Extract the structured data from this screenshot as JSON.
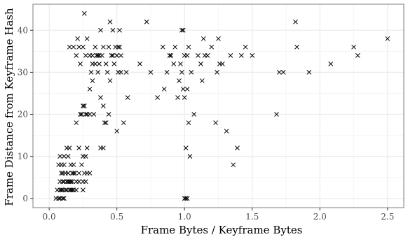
{
  "chart_data": {
    "type": "scatter",
    "title": "",
    "xlabel": "Frame Bytes / Keyframe Bytes",
    "ylabel": "Frame Distance from Keyframe Hash",
    "xlim": [
      -0.12,
      2.62
    ],
    "ylim": [
      -2.2,
      46.2
    ],
    "xticks": [
      0.0,
      0.5,
      1.0,
      1.5,
      2.0,
      2.5
    ],
    "xtick_labels": [
      "0.0",
      "0.5",
      "1.0",
      "1.5",
      "2.0",
      "2.5"
    ],
    "yticks": [
      0,
      10,
      20,
      30,
      40
    ],
    "ytick_labels": [
      "0",
      "10",
      "20",
      "30",
      "40"
    ],
    "grid": true,
    "marker": "x",
    "colors": {
      "background": "#ffffff",
      "grid_major": "#ebebeb",
      "grid_minor": "#f5f5f5",
      "panel_border": "#7f7f7f",
      "marker": "#000000"
    },
    "points": [
      [
        0.05,
        0
      ],
      [
        0.06,
        2
      ],
      [
        0.07,
        0
      ],
      [
        0.08,
        2
      ],
      [
        0.08,
        4
      ],
      [
        0.08,
        0
      ],
      [
        0.09,
        2
      ],
      [
        0.09,
        6
      ],
      [
        0.1,
        0
      ],
      [
        0.1,
        4
      ],
      [
        0.1,
        2
      ],
      [
        0.11,
        0
      ],
      [
        0.11,
        4
      ],
      [
        0.12,
        2
      ],
      [
        0.12,
        6
      ],
      [
        0.13,
        4
      ],
      [
        0.13,
        2
      ],
      [
        0.14,
        4
      ],
      [
        0.14,
        6
      ],
      [
        0.15,
        2
      ],
      [
        0.15,
        4
      ],
      [
        0.16,
        4
      ],
      [
        0.16,
        2
      ],
      [
        0.17,
        2
      ],
      [
        0.17,
        4
      ],
      [
        0.18,
        2
      ],
      [
        0.18,
        6
      ],
      [
        0.2,
        2
      ],
      [
        0.22,
        4
      ],
      [
        0.25,
        2
      ],
      [
        0.07,
        8
      ],
      [
        0.08,
        10
      ],
      [
        0.09,
        8
      ],
      [
        0.1,
        6
      ],
      [
        0.11,
        10
      ],
      [
        0.11,
        8
      ],
      [
        0.12,
        6
      ],
      [
        0.13,
        12
      ],
      [
        0.14,
        6
      ],
      [
        0.14,
        10
      ],
      [
        0.15,
        12
      ],
      [
        0.16,
        8
      ],
      [
        0.17,
        6
      ],
      [
        0.18,
        8
      ],
      [
        0.19,
        6
      ],
      [
        0.2,
        4
      ],
      [
        0.22,
        6
      ],
      [
        0.22,
        12
      ],
      [
        0.24,
        8
      ],
      [
        0.25,
        10
      ],
      [
        0.25,
        4
      ],
      [
        0.26,
        6
      ],
      [
        0.27,
        4
      ],
      [
        0.27,
        10
      ],
      [
        0.28,
        12
      ],
      [
        0.28,
        6
      ],
      [
        0.3,
        6
      ],
      [
        0.2,
        18
      ],
      [
        0.23,
        20
      ],
      [
        0.24,
        20
      ],
      [
        0.25,
        22
      ],
      [
        0.26,
        22
      ],
      [
        0.27,
        20
      ],
      [
        0.28,
        20
      ],
      [
        0.3,
        20
      ],
      [
        0.3,
        26
      ],
      [
        0.31,
        30
      ],
      [
        0.32,
        32
      ],
      [
        0.32,
        28
      ],
      [
        0.33,
        20
      ],
      [
        0.34,
        32
      ],
      [
        0.35,
        34
      ],
      [
        0.36,
        30
      ],
      [
        0.37,
        34
      ],
      [
        0.38,
        24
      ],
      [
        0.38,
        12
      ],
      [
        0.39,
        34
      ],
      [
        0.4,
        12
      ],
      [
        0.4,
        22
      ],
      [
        0.41,
        18
      ],
      [
        0.42,
        18
      ],
      [
        0.43,
        30
      ],
      [
        0.44,
        20
      ],
      [
        0.45,
        28
      ],
      [
        0.46,
        34
      ],
      [
        0.47,
        34
      ],
      [
        0.48,
        32
      ],
      [
        0.5,
        16
      ],
      [
        0.5,
        34
      ],
      [
        0.51,
        30
      ],
      [
        0.52,
        36
      ],
      [
        0.53,
        30
      ],
      [
        0.55,
        18
      ],
      [
        0.57,
        30
      ],
      [
        0.58,
        24
      ],
      [
        0.15,
        36
      ],
      [
        0.18,
        36
      ],
      [
        0.2,
        34
      ],
      [
        0.21,
        38
      ],
      [
        0.22,
        36
      ],
      [
        0.23,
        32
      ],
      [
        0.25,
        36
      ],
      [
        0.26,
        44
      ],
      [
        0.27,
        34
      ],
      [
        0.28,
        38
      ],
      [
        0.3,
        34
      ],
      [
        0.32,
        34
      ],
      [
        0.34,
        36
      ],
      [
        0.36,
        34
      ],
      [
        0.37,
        32
      ],
      [
        0.38,
        40
      ],
      [
        0.4,
        36
      ],
      [
        0.42,
        32
      ],
      [
        0.44,
        36
      ],
      [
        0.45,
        42
      ],
      [
        0.47,
        40
      ],
      [
        0.49,
        36
      ],
      [
        0.5,
        34
      ],
      [
        0.51,
        36
      ],
      [
        0.52,
        40
      ],
      [
        0.53,
        34
      ],
      [
        0.67,
        32
      ],
      [
        0.72,
        42
      ],
      [
        0.75,
        30
      ],
      [
        0.8,
        24
      ],
      [
        0.84,
        36
      ],
      [
        0.85,
        26
      ],
      [
        0.87,
        30
      ],
      [
        0.89,
        34
      ],
      [
        0.9,
        34
      ],
      [
        0.92,
        32
      ],
      [
        0.93,
        36
      ],
      [
        0.95,
        24
      ],
      [
        0.96,
        28
      ],
      [
        0.97,
        32
      ],
      [
        0.98,
        30
      ],
      [
        0.98,
        40
      ],
      [
        0.99,
        40
      ],
      [
        0.99,
        26
      ],
      [
        1.0,
        34
      ],
      [
        1.0,
        24
      ],
      [
        1.0,
        0
      ],
      [
        1.01,
        0
      ],
      [
        1.02,
        34
      ],
      [
        1.02,
        26
      ],
      [
        1.03,
        36
      ],
      [
        1.04,
        10
      ],
      [
        1.03,
        18
      ],
      [
        1.05,
        30
      ],
      [
        1.07,
        20
      ],
      [
        1.01,
        12
      ],
      [
        1.02,
        0
      ],
      [
        1.1,
        34
      ],
      [
        1.12,
        32
      ],
      [
        1.13,
        28
      ],
      [
        1.14,
        38
      ],
      [
        1.15,
        34
      ],
      [
        1.17,
        34
      ],
      [
        1.2,
        36
      ],
      [
        1.23,
        18
      ],
      [
        1.24,
        30
      ],
      [
        1.25,
        38
      ],
      [
        1.26,
        32
      ],
      [
        1.28,
        32
      ],
      [
        1.31,
        16
      ],
      [
        1.34,
        34
      ],
      [
        1.36,
        8
      ],
      [
        1.39,
        12
      ],
      [
        1.42,
        34
      ],
      [
        1.45,
        36
      ],
      [
        1.5,
        34
      ],
      [
        1.68,
        20
      ],
      [
        1.7,
        30
      ],
      [
        1.73,
        30
      ],
      [
        1.82,
        42
      ],
      [
        1.83,
        36
      ],
      [
        1.92,
        30
      ],
      [
        2.08,
        32
      ],
      [
        2.25,
        36
      ],
      [
        2.28,
        34
      ],
      [
        2.5,
        38
      ]
    ]
  }
}
